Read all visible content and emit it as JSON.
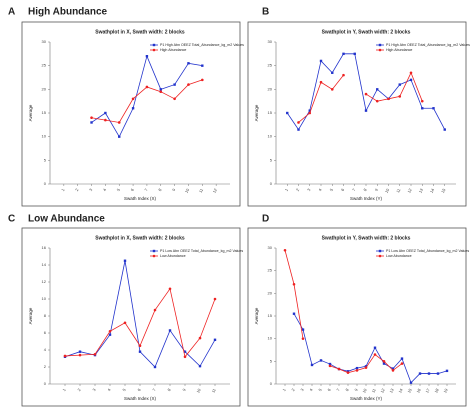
{
  "chart_data": [
    {
      "type": "line",
      "panel_label": "A",
      "heading": "High Abundance",
      "title": "Swathplot in X, Swath width: 2 blocks",
      "x_label": "Swath Index (X)",
      "y_label": "Average",
      "x": [
        3,
        4,
        5,
        6,
        7,
        8,
        9,
        10,
        11
      ],
      "series": [
        {
          "name": "P1 High Abn OEEZ Total_Abundance_kg_m2 Values",
          "color": "#2233cc",
          "values": [
            13,
            15,
            10,
            16,
            27,
            20,
            21,
            25.5,
            25
          ]
        },
        {
          "name": "High Abundance",
          "color": "#ee2222",
          "values": [
            14,
            13.5,
            13,
            18,
            20.5,
            19.5,
            18,
            21,
            22
          ]
        }
      ],
      "xlim": [
        0,
        13
      ],
      "xticks": [
        1,
        2,
        3,
        4,
        5,
        6,
        7,
        8,
        9,
        10,
        11,
        12
      ],
      "ylim": [
        0,
        30
      ],
      "yticks": [
        0,
        5,
        10,
        15,
        20,
        25,
        30
      ]
    },
    {
      "type": "line",
      "panel_label": "B",
      "title": "Swathplot in Y, Swath width: 2 blocks",
      "x_label": "Swath Index (Y)",
      "y_label": "Average",
      "x": [
        1,
        2,
        3,
        4,
        5,
        6,
        7,
        8,
        9,
        10,
        11,
        12,
        13,
        14,
        15
      ],
      "series": [
        {
          "name": "P1 High Abn OEEZ Total_Abundance_kg_m2 Values",
          "color": "#2233cc",
          "values": [
            15,
            11.5,
            15.5,
            26,
            23.5,
            27.5,
            27.5,
            15.5,
            20,
            18,
            21,
            22,
            16,
            16,
            11.5
          ]
        },
        {
          "name": "High Abundance",
          "color": "#ee2222",
          "values": [
            null,
            13,
            15,
            21.5,
            20,
            23,
            null,
            19,
            17.5,
            18,
            18.5,
            23.5,
            17.5,
            null,
            null
          ]
        }
      ],
      "xlim": [
        0,
        16
      ],
      "xticks": [
        1,
        2,
        3,
        4,
        5,
        6,
        7,
        8,
        9,
        10,
        11,
        12,
        13,
        14,
        15
      ],
      "ylim": [
        0,
        30
      ],
      "yticks": [
        0,
        5,
        10,
        15,
        20,
        25,
        30
      ]
    },
    {
      "type": "line",
      "panel_label": "C",
      "heading": "Low Abundance",
      "title": "Swathplot in X, Swath width: 2 blocks",
      "x_label": "Swath Index (X)",
      "y_label": "Average",
      "x": [
        1,
        2,
        3,
        4,
        5,
        6,
        7,
        8,
        9,
        10,
        11
      ],
      "series": [
        {
          "name": "P1 Low Abn OEEZ Total_Abundance_kg_m2 Values",
          "color": "#2233cc",
          "values": [
            3.2,
            3.8,
            3.4,
            5.8,
            14.5,
            3.8,
            2,
            6.3,
            3.8,
            2.1,
            5.2
          ]
        },
        {
          "name": "Low Abundance",
          "color": "#ee2222",
          "values": [
            3.3,
            3.4,
            3.5,
            6.2,
            7.2,
            4.5,
            8.7,
            11.2,
            3.2,
            5.4,
            10
          ]
        }
      ],
      "xlim": [
        0,
        12
      ],
      "xticks": [
        1,
        2,
        3,
        4,
        5,
        6,
        7,
        8,
        9,
        10,
        11
      ],
      "ylim": [
        0,
        16
      ],
      "yticks": [
        0,
        2,
        4,
        6,
        8,
        10,
        12,
        14,
        16
      ]
    },
    {
      "type": "line",
      "panel_label": "D",
      "title": "Swathplot in Y, Swath width: 2 blocks",
      "x_label": "Swath Index (Y)",
      "y_label": "Average",
      "x": [
        1,
        2,
        3,
        4,
        5,
        6,
        7,
        8,
        9,
        10,
        11,
        12,
        13,
        14,
        15,
        16,
        17,
        18,
        19
      ],
      "series": [
        {
          "name": "P1 Low Abn OEEZ Total_Abundance_kg_m2 Values",
          "color": "#2233cc",
          "values": [
            null,
            15.5,
            12,
            4.2,
            5.2,
            4.4,
            3.3,
            2.8,
            3.5,
            3.9,
            8,
            4.5,
            3.4,
            5.6,
            0.3,
            2.3,
            2.3,
            2.3,
            2.9
          ]
        },
        {
          "name": "Low Abundance",
          "color": "#ee2222",
          "values": [
            29.5,
            22,
            10,
            null,
            null,
            4,
            3.3,
            2.5,
            3,
            3.6,
            6.5,
            5,
            3,
            4.5,
            null,
            null,
            null,
            null,
            null
          ]
        }
      ],
      "xlim": [
        0,
        20
      ],
      "xticks": [
        1,
        2,
        3,
        4,
        5,
        6,
        7,
        8,
        9,
        10,
        11,
        12,
        13,
        14,
        15,
        16,
        17,
        18,
        19
      ],
      "ylim": [
        0,
        30
      ],
      "yticks": [
        0,
        5,
        10,
        15,
        20,
        25,
        30
      ]
    }
  ]
}
